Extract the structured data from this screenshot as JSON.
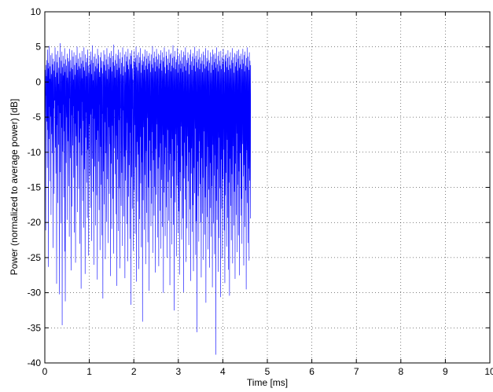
{
  "chart_data": {
    "type": "line",
    "title": "",
    "xlabel": "Time [ms]",
    "ylabel": "Power (normalized to average power) [dB]",
    "xlim": [
      0,
      10
    ],
    "ylim": [
      -40,
      10
    ],
    "x_ticks": [
      0,
      1,
      2,
      3,
      4,
      5,
      6,
      7,
      8,
      9,
      10
    ],
    "y_ticks": [
      10,
      5,
      0,
      -5,
      -10,
      -15,
      -20,
      -25,
      -30,
      -35,
      -40
    ],
    "x_tick_labels": [
      "0",
      "1",
      "2",
      "3",
      "4",
      "5",
      "6",
      "7",
      "8",
      "9",
      "10"
    ],
    "y_tick_labels": [
      "10",
      "5",
      "0",
      "-5",
      "-10",
      "-15",
      "-20",
      "-25",
      "-30",
      "-35",
      "-40"
    ],
    "grid": true,
    "grid_style": "dotted",
    "line_color": "#0000ff",
    "series": [
      {
        "name": "",
        "sample_interval_ms": 0.005,
        "values": [
          3.6,
          -3.0,
          1.7,
          -4.2,
          -21.1,
          2.4,
          -1.9,
          0.8,
          -5.6,
          3.1,
          -2.4,
          -12.2,
          4.6,
          -0.9,
          -6.8,
          1.9,
          -26.3,
          2.7,
          -1.6,
          -8.1,
          5.1,
          -3.5,
          0.4,
          -14.1,
          2.2,
          -2.0,
          -4.9,
          3.8,
          -18.9,
          1.1,
          -1.2,
          -7.4,
          4.1,
          -2.9,
          -10.1,
          2.5,
          -0.6,
          -23.6,
          3.3,
          -3.7,
          1.6,
          -5.3,
          -15.9,
          2.9,
          -1.4,
          -2.6,
          4.9,
          -9.3,
          0.7,
          -3.1,
          -13.0,
          3.9,
          -2.2,
          -28.7,
          1.3,
          -6.1,
          2.8,
          -1.1,
          -17.2,
          4.4,
          -3.3,
          -0.3,
          -8.9,
          2.0,
          -2.5,
          -30.2,
          3.5,
          -1.7,
          -4.4,
          5.5,
          -12.8,
          1.2,
          -2.8,
          -20.1,
          3.0,
          -0.8,
          -6.5,
          4.3,
          -34.6,
          2.1,
          -1.5,
          -9.9,
          3.7,
          -3.2,
          0.9,
          -16.4,
          2.6,
          -2.1,
          -7.0,
          4.8,
          -24.1,
          1.4,
          -31.2,
          -3.9,
          3.2,
          -1.3,
          -11.5,
          2.3,
          -2.7,
          -5.0,
          4.0,
          -19.6,
          0.6,
          -1.0,
          -8.4,
          3.4,
          -3.6,
          -14.8,
          2.9,
          -0.5,
          -22.0,
          4.7,
          -2.3,
          1.5,
          -6.3,
          -10.8,
          3.1,
          -1.8,
          -26.8,
          2.0,
          -4.7,
          4.5,
          -0.7,
          -17.7,
          1.8,
          -2.6,
          -9.0,
          3.6,
          -3.4,
          0.3,
          -13.6,
          4.2,
          -1.6,
          -21.4,
          2.4,
          -5.9,
          1.0,
          -2.0,
          -25.7,
          3.8,
          -0.9,
          -7.7,
          2.7,
          -3.1,
          -11.9,
          5.0,
          -1.2,
          -18.5,
          1.7,
          -4.1,
          3.3,
          -2.4,
          -15.2,
          2.2,
          -0.4,
          -8.6,
          4.1,
          -3.0,
          -23.0,
          1.9,
          -1.9,
          -6.6,
          3.5,
          -29.4,
          2.6,
          -1.4,
          -10.4,
          4.4,
          -2.8,
          0.5,
          -16.9,
          3.0,
          -3.7,
          -5.5,
          2.1,
          -20.7,
          4.9,
          -0.8,
          -12.4,
          1.6,
          -2.5,
          -27.3,
          3.9,
          -1.1,
          -7.9,
          2.8,
          -4.3,
          0.8,
          -14.3,
          3.4,
          -2.2,
          -19.3,
          4.6,
          -1.7,
          -9.6,
          2.3,
          -3.3,
          -24.7,
          1.3,
          -0.6,
          -6.0,
          3.7,
          -13.3,
          2.5,
          -2.9,
          -17.9,
          4.3,
          -1.5,
          -4.6,
          3.1,
          -22.6,
          1.1,
          -2.1,
          -10.9,
          5.2,
          -3.8,
          0.2,
          -15.6,
          2.7,
          -1.3,
          -26.0,
          3.6,
          -5.2,
          1.5,
          -2.7,
          -12.0,
          4.0,
          -0.9,
          -20.4,
          2.2,
          -3.5,
          -8.2,
          3.3,
          -16.1,
          1.9,
          -1.8,
          -28.1,
          4.7,
          -2.4,
          -6.9,
          2.6,
          -11.3,
          3.8,
          -1.0,
          -18.2,
          1.4,
          -3.2,
          0.7,
          -23.9,
          3.5,
          -2.0,
          -9.2,
          4.2,
          -14.6,
          2.0,
          -1.6,
          -21.8,
          3.0,
          -4.5,
          1.2,
          -7.3,
          -30.8,
          2.9,
          -0.7,
          -12.7,
          4.5,
          -3.0,
          -17.4,
          2.4,
          -1.4,
          -5.7,
          3.9,
          -25.2,
          1.6,
          -2.6,
          -10.1,
          3.2,
          -1.1,
          -19.9,
          4.8,
          -3.6,
          0.4,
          -13.8,
          2.5,
          -2.3,
          -22.9,
          3.6,
          -6.4,
          1.8,
          -1.5,
          -15.9,
          4.1,
          -2.8,
          -8.8,
          2.1,
          -27.6,
          3.4,
          -0.5,
          -11.6,
          4.4,
          -3.4,
          -20.9,
          1.5,
          -1.9,
          -6.2,
          3.7,
          -16.6,
          2.8,
          -2.2,
          -24.4,
          5.3,
          -1.2,
          -9.4,
          2.3,
          -3.9,
          0.6,
          -13.1,
          3.1,
          -2.5,
          -18.8,
          4.0,
          -1.7,
          -7.6,
          2.6,
          -29.0,
          1.7,
          -3.1,
          -11.0,
          3.8,
          -0.8,
          -21.2,
          4.6,
          -2.0,
          -5.4,
          2.0,
          -15.1,
          3.3,
          -1.6,
          -26.5,
          4.2,
          -3.7,
          1.1,
          -8.0,
          -17.6,
          2.7,
          -2.4,
          -12.9,
          3.5,
          -1.3,
          -23.3,
          4.9,
          -4.0,
          0.9,
          -6.7,
          -19.1,
          2.2,
          -1.0,
          -10.6,
          3.9,
          -2.9,
          -27.9,
          1.4,
          -1.8,
          -14.0,
          4.3,
          -3.3,
          -9.7,
          2.9,
          -20.2,
          3.6,
          -1.4,
          -5.8,
          2.4,
          -25.5,
          4.7,
          -2.7,
          -16.3,
          1.8,
          -0.6,
          -11.8,
          3.2,
          -3.5,
          -22.3,
          4.1,
          -1.9,
          -7.2,
          2.5,
          -31.7,
          3.7,
          -2.1,
          -13.5,
          4.5,
          -1.1,
          -18.0,
          1.9,
          -3.8,
          0.3,
          -9.1,
          -24.0,
          3.0,
          -2.6,
          -15.4,
          4.4,
          -1.5,
          -6.1,
          2.8,
          -21.6,
          3.4,
          -0.7,
          -12.1,
          5.0,
          -3.2,
          -28.4,
          2.1,
          -1.7,
          -8.5,
          3.8,
          -17.0,
          1.6,
          -2.3,
          -10.3,
          4.2,
          -4.2,
          -26.6,
          2.7,
          -1.2,
          -19.5,
          3.5,
          -2.8,
          -7.8,
          4.8,
          -14.4,
          1.3,
          -1.8,
          -23.5,
          3.1,
          -3.6,
          -11.4,
          2.4,
          -34.1,
          4.0,
          -0.9,
          -16.8,
          2.9,
          -2.5,
          -6.4,
          3.6,
          -21.0,
          1.7,
          -1.4,
          -13.2,
          4.6,
          -3.9,
          -25.9,
          2.3,
          -2.0,
          -9.8,
          3.3,
          -18.6,
          4.4,
          -1.0,
          -5.1,
          1.8,
          -22.8,
          3.7,
          -3.1,
          -15.0,
          2.6,
          -1.6,
          -29.7,
          4.1,
          -2.2,
          -8.3,
          3.0,
          -12.6,
          1.4,
          -4.4,
          -20.5,
          3.9,
          -0.8,
          -17.3,
          2.5,
          -2.7,
          -7.1,
          5.1,
          -24.3,
          2.0,
          -1.3,
          -11.1,
          3.4,
          -3.4,
          -19.0,
          4.3,
          -1.8,
          -14.9,
          2.8,
          -27.1,
          1.5,
          -2.4,
          -9.5,
          3.6,
          -16.0,
          4.7,
          -3.0,
          -6.0,
          2.2,
          -22.1,
          3.2,
          -1.1,
          -12.3,
          4.0,
          -4.1,
          -26.2,
          1.9,
          -2.6,
          -10.7,
          3.8,
          -18.3,
          2.6,
          -1.5,
          -8.7,
          4.5,
          -23.7,
          3.1,
          -3.3,
          -13.9,
          1.6,
          -0.6,
          -20.6,
          4.2,
          -2.1,
          -7.5,
          2.9,
          -30.0,
          3.5,
          -1.9,
          -15.7,
          4.9,
          -3.7,
          -11.7,
          2.1,
          -21.9,
          1.2,
          -2.8,
          -9.3,
          3.7,
          -17.8,
          4.3,
          -1.2,
          -25.0,
          2.4,
          -4.6,
          -6.8,
          3.3,
          -14.2,
          1.7,
          -2.2,
          -19.7,
          4.6,
          -1.7,
          -12.5,
          2.7,
          -28.9,
          3.9,
          -3.5,
          -10.2,
          1.5,
          -16.5,
          4.1,
          -0.9,
          -23.1,
          2.3,
          -2.5,
          -8.1,
          3.4,
          -13.4,
          5.2,
          -3.8,
          -20.3,
          2.0,
          -1.4,
          -32.5,
          3.6,
          -2.0,
          -11.2,
          4.4,
          -17.1,
          1.8,
          -4.3,
          -7.4,
          2.8,
          -24.8,
          3.2,
          -1.6,
          -14.7,
          4.8,
          -2.9,
          -9.0,
          1.3,
          -21.5,
          3.7,
          -3.2,
          -18.4,
          2.5,
          -1.0,
          -27.4,
          4.0,
          -2.3,
          -12.8,
          3.0,
          -15.5,
          1.9,
          -4.0,
          -6.3,
          4.5,
          -22.4,
          2.6,
          -1.8,
          -10.5,
          3.5,
          -19.4,
          1.4,
          -2.7,
          -29.9,
          4.3,
          -3.6,
          -13.7,
          2.2,
          -8.6,
          3.8,
          -1.3,
          -16.7,
          4.9,
          -2.4,
          -25.6,
          1.6,
          -3.9,
          -11.9,
          3.1,
          -20.8,
          2.7,
          -1.9,
          -7.7,
          4.2,
          -14.1,
          3.4,
          -2.6,
          -23.2,
          1.1,
          -4.5,
          -10.0,
          3.9,
          -18.1,
          2.4,
          -1.5,
          -28.3,
          4.6,
          -3.1,
          -13.0,
          2.9,
          -9.4,
          1.7,
          -2.1,
          -21.3,
          3.6,
          -17.5,
          4.1,
          -3.4,
          -26.9,
          2.3,
          -1.1,
          -12.2,
          3.3,
          -15.8,
          5.0,
          -2.8,
          -6.6,
          1.5,
          -24.6,
          3.7,
          -2.0,
          -19.8,
          2.8,
          -3.7,
          -35.6,
          4.4,
          -1.6,
          -11.3,
          2.0,
          -16.2,
          3.2,
          -2.5,
          -22.7,
          4.7,
          -4.2,
          -8.4,
          1.8,
          -14.5,
          3.5,
          -1.2,
          -20.0,
          2.6,
          -2.9,
          -27.8,
          4.0,
          -3.3,
          -10.8,
          3.0,
          -18.7,
          1.4,
          -1.8,
          -13.6,
          4.3,
          -25.3,
          2.5,
          -3.0,
          -7.0,
          3.8,
          -21.7,
          1.9,
          -2.2,
          -16.4,
          4.8,
          -1.4,
          -31.4,
          2.2,
          -3.8,
          -12.0,
          3.4,
          -19.2,
          2.9,
          -2.4,
          -9.2,
          4.5,
          -23.8,
          1.6,
          -1.7,
          -15.3,
          3.1,
          -4.4,
          -26.4,
          2.7,
          -2.6,
          -11.5,
          4.2,
          -17.9,
          1.3,
          -1.0,
          -22.0,
          3.6,
          -3.5,
          -14.8,
          2.4,
          -29.2,
          4.6,
          -2.1,
          -8.9,
          1.7,
          -20.1,
          3.9,
          -3.2,
          -13.3,
          2.8,
          -24.5,
          4.1,
          -1.5,
          -10.4,
          3.3,
          -38.8,
          2.0,
          -2.7,
          -16.9,
          4.9,
          -3.9,
          -19.6,
          2.5,
          -1.3,
          -12.4,
          3.7,
          -27.0,
          1.5,
          -2.3,
          -7.9,
          4.3,
          -22.2,
          3.0,
          -3.6,
          -15.1,
          2.3,
          -1.9,
          -30.6,
          4.4,
          -2.5,
          -11.0,
          1.8,
          -18.0,
          3.5,
          -4.1,
          -25.1,
          2.6,
          -1.1,
          -13.8,
          4.7,
          -2.8,
          -9.6,
          3.2,
          -21.1,
          1.4,
          -3.1,
          -28.6,
          3.8,
          -2.0,
          -16.1,
          2.9,
          -12.9,
          4.0,
          -1.6,
          -23.4,
          2.1,
          -3.7,
          -8.2,
          3.4,
          -19.3,
          4.5,
          -2.4,
          -26.7,
          1.7,
          -1.4,
          -14.3,
          3.6,
          -30.4,
          2.4,
          -3.3,
          -10.9,
          4.2,
          -17.6,
          1.9,
          -2.2,
          -22.5,
          3.1,
          -1.2,
          -13.1,
          4.8,
          -4.0,
          -25.8,
          2.7,
          -2.9,
          -9.1,
          3.5,
          -20.4,
          1.3,
          -1.8,
          -15.6,
          4.1,
          -3.5,
          -28.0,
          2.2,
          -2.1,
          -11.6,
          3.9,
          -18.9,
          2.8,
          -1.5,
          -7.3,
          4.4,
          -24.2,
          1.6,
          -3.0,
          -14.6,
          3.3,
          -21.8,
          4.6,
          -2.6,
          -12.7,
          2.0,
          -27.5,
          3.7,
          -1.3,
          -10.1,
          2.5,
          -4.3,
          -19.0,
          4.0,
          -2.3,
          -16.6,
          1.8,
          -23.0,
          3.2,
          -3.4,
          -8.8,
          4.7,
          -1.7,
          -13.4,
          2.6,
          -26.1,
          3.8,
          -2.7,
          -11.8,
          1.5,
          -20.6,
          4.3,
          -3.8,
          -15.4,
          2.3,
          -1.0,
          -29.5,
          3.4,
          -2.0,
          -9.7,
          4.9,
          -17.2,
          2.1,
          -3.2,
          -22.9,
          3.6,
          -1.9,
          -12.3,
          1.7,
          -25.4,
          4.2,
          -2.5,
          -14.0,
          3.0,
          -4.2,
          -19.4,
          2.4
        ]
      }
    ]
  }
}
